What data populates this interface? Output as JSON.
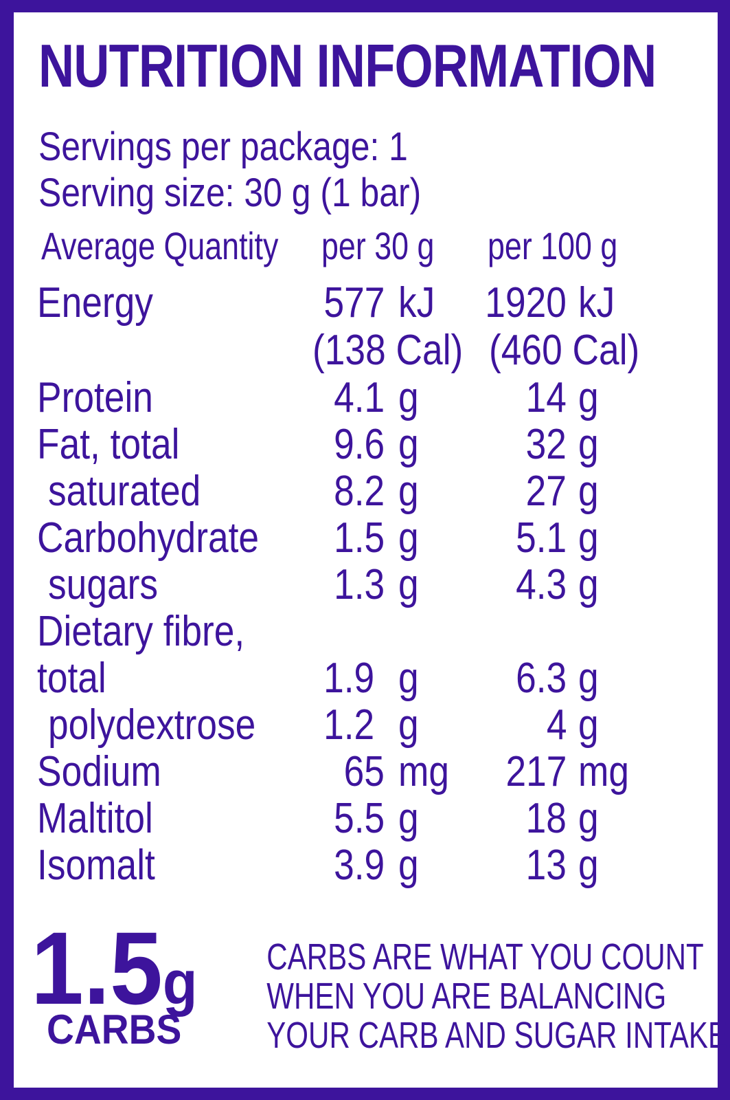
{
  "title": "NUTRITION INFORMATION",
  "servings_per_package": "Servings per package: 1",
  "serving_size": "Serving size: 30 g (1 bar)",
  "columns": {
    "name": "Average Quantity",
    "per_serving": "per 30 g",
    "per_100g": "per 100 g"
  },
  "energy": {
    "name": "Energy",
    "per_serving_value": "577",
    "per_serving_unit": "kJ",
    "per_100g_value": "1920",
    "per_100g_unit": "kJ",
    "per_serving_cal": "(138 Cal)",
    "per_100g_cal": "(460 Cal)"
  },
  "rows": [
    {
      "name": "Protein",
      "v1": "4.1",
      "u1": "g",
      "v2": "14",
      "u2": "g"
    },
    {
      "name": "Fat, total",
      "v1": "9.6",
      "u1": "g",
      "v2": "32",
      "u2": "g"
    },
    {
      "name": "saturated",
      "v1": "8.2",
      "u1": "g",
      "v2": "27",
      "u2": "g"
    },
    {
      "name": "Carbohydrate",
      "v1": "1.5",
      "u1": "g",
      "v2": "5.1",
      "u2": "g"
    },
    {
      "name": "sugars",
      "v1": "1.3",
      "u1": "g",
      "v2": "4.3",
      "u2": "g"
    },
    {
      "name": "Dietary fibre,"
    },
    {
      "name": "total",
      "v1": "1.9",
      "u1": "g",
      "v2": "6.3",
      "u2": "g"
    },
    {
      "name": "polydextrose",
      "v1": "1.2",
      "u1": "g",
      "v2": "4",
      "u2": "g"
    },
    {
      "name": "Sodium",
      "v1": "65",
      "u1": "mg",
      "v2": "217",
      "u2": "mg"
    },
    {
      "name": "Maltitol",
      "v1": "5.5",
      "u1": "g",
      "v2": "18",
      "u2": "g"
    },
    {
      "name": "Isomalt",
      "v1": "3.9",
      "u1": "g",
      "v2": "13",
      "u2": "g"
    }
  ],
  "callout": {
    "number": "1.5",
    "unit": "g",
    "label": "CARBS",
    "message_lines": [
      "CARBS ARE WHAT YOU COUNT",
      "WHEN YOU ARE BALANCING",
      "YOUR CARB AND SUGAR INTAKE."
    ]
  },
  "colors": {
    "brand_purple": "#3d149c",
    "background": "#ffffff"
  }
}
